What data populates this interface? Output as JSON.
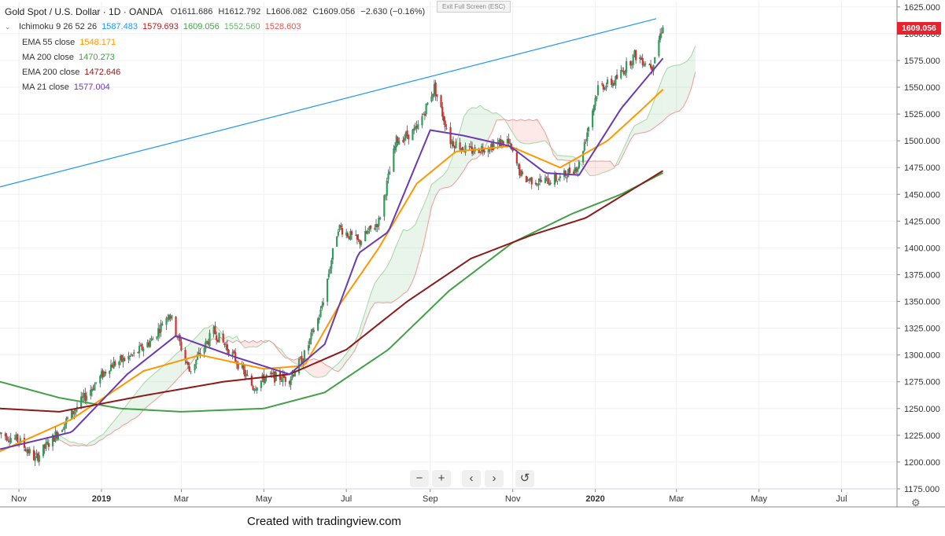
{
  "header": {
    "symbol": "Gold Spot / U.S. Dollar · 1D · OANDA",
    "open": "O1611.686",
    "high": "H1612.792",
    "low": "L1606.082",
    "close": "C1609.056",
    "change": "−2.630 (−0.16%)"
  },
  "toolbar": {
    "exit_fullscreen": "Exit Full Screen (ESC)"
  },
  "indicators": {
    "ichimoku": {
      "label": "Ichimoku 9 26 52 26",
      "values": [
        "1587.483",
        "1579.693",
        "1609.056",
        "1552.560",
        "1528.603"
      ],
      "colors": [
        "#2196f3",
        "#b71c1c",
        "#43a047",
        "#66bb6a",
        "#ef5350"
      ]
    },
    "ema55": {
      "label": "EMA 55 close",
      "value": "1548.171",
      "color": "#ff9800"
    },
    "ma200": {
      "label": "MA 200 close",
      "value": "1470.273",
      "color": "#43a047"
    },
    "ema200": {
      "label": "EMA 200 close",
      "value": "1472.646",
      "color": "#8b1a1a"
    },
    "ma21": {
      "label": "MA 21 close",
      "value": "1577.004",
      "color": "#6a3ab0"
    }
  },
  "price_badge": "1609.056",
  "nav": {
    "zoom_out": "−",
    "zoom_in": "+",
    "back": "‹",
    "forward": "›",
    "reset": "↺"
  },
  "credit": "Created with tradingview.com",
  "settings_icon": "gear-icon",
  "chart_data": {
    "type": "candlestick",
    "title": "Gold Spot / U.S. Dollar · 1D · OANDA",
    "yaxis_ticks": [
      1175,
      1200,
      1225,
      1250,
      1275,
      1300,
      1325,
      1350,
      1375,
      1400,
      1425,
      1450,
      1475,
      1500,
      1525,
      1550,
      1575,
      1600,
      1625
    ],
    "ylim": [
      1175,
      1630
    ],
    "xaxis_labels": [
      {
        "label": "Nov",
        "date": "2018-11-01"
      },
      {
        "label": "2019",
        "date": "2019-01-01"
      },
      {
        "label": "Mar",
        "date": "2019-03-01"
      },
      {
        "label": "May",
        "date": "2019-05-01"
      },
      {
        "label": "Jul",
        "date": "2019-07-01"
      },
      {
        "label": "Sep",
        "date": "2019-09-01"
      },
      {
        "label": "Nov",
        "date": "2019-11-01"
      },
      {
        "label": "2020",
        "date": "2020-01-01"
      },
      {
        "label": "Mar",
        "date": "2020-03-01"
      },
      {
        "label": "May",
        "date": "2020-05-01"
      },
      {
        "label": "Jul",
        "date": "2020-07-01"
      }
    ],
    "xlim": [
      "2018-10-18",
      "2020-08-11"
    ],
    "close_series": [
      [
        "2018-10-18",
        1227
      ],
      [
        "2018-11-01",
        1220
      ],
      [
        "2018-11-13",
        1203
      ],
      [
        "2018-11-26",
        1222
      ],
      [
        "2018-12-10",
        1245
      ],
      [
        "2018-12-24",
        1268
      ],
      [
        "2019-01-07",
        1290
      ],
      [
        "2019-01-25",
        1300
      ],
      [
        "2019-02-08",
        1315
      ],
      [
        "2019-02-20",
        1340
      ],
      [
        "2019-03-07",
        1285
      ],
      [
        "2019-03-25",
        1322
      ],
      [
        "2019-04-08",
        1300
      ],
      [
        "2019-04-23",
        1270
      ],
      [
        "2019-05-03",
        1280
      ],
      [
        "2019-05-20",
        1278
      ],
      [
        "2019-05-31",
        1300
      ],
      [
        "2019-06-12",
        1340
      ],
      [
        "2019-06-25",
        1420
      ],
      [
        "2019-07-10",
        1405
      ],
      [
        "2019-07-25",
        1425
      ],
      [
        "2019-08-07",
        1500
      ],
      [
        "2019-08-22",
        1510
      ],
      [
        "2019-09-04",
        1550
      ],
      [
        "2019-09-16",
        1500
      ],
      [
        "2019-09-30",
        1490
      ],
      [
        "2019-10-14",
        1495
      ],
      [
        "2019-10-28",
        1500
      ],
      [
        "2019-11-08",
        1465
      ],
      [
        "2019-11-22",
        1462
      ],
      [
        "2019-12-06",
        1465
      ],
      [
        "2019-12-20",
        1478
      ],
      [
        "2020-01-03",
        1550
      ],
      [
        "2020-01-15",
        1555
      ],
      [
        "2020-01-30",
        1580
      ],
      [
        "2020-02-12",
        1570
      ],
      [
        "2020-02-20",
        1609
      ]
    ],
    "series": [
      {
        "name": "EMA 55 close",
        "color": "#ff9800",
        "points": [
          [
            "2018-10-18",
            1210
          ],
          [
            "2018-12-10",
            1240
          ],
          [
            "2019-02-01",
            1285
          ],
          [
            "2019-03-15",
            1300
          ],
          [
            "2019-05-01",
            1287
          ],
          [
            "2019-05-31",
            1290
          ],
          [
            "2019-06-25",
            1345
          ],
          [
            "2019-07-25",
            1400
          ],
          [
            "2019-08-22",
            1460
          ],
          [
            "2019-09-20",
            1490
          ],
          [
            "2019-10-30",
            1495
          ],
          [
            "2019-12-06",
            1475
          ],
          [
            "2020-01-10",
            1500
          ],
          [
            "2020-02-05",
            1530
          ],
          [
            "2020-02-20",
            1548
          ]
        ]
      },
      {
        "name": "MA 200 close",
        "color": "#43a047",
        "points": [
          [
            "2018-10-18",
            1275
          ],
          [
            "2018-12-01",
            1260
          ],
          [
            "2019-01-15",
            1250
          ],
          [
            "2019-03-01",
            1247
          ],
          [
            "2019-05-01",
            1250
          ],
          [
            "2019-06-15",
            1265
          ],
          [
            "2019-08-01",
            1305
          ],
          [
            "2019-09-15",
            1360
          ],
          [
            "2019-11-01",
            1405
          ],
          [
            "2019-12-15",
            1432
          ],
          [
            "2020-01-20",
            1450
          ],
          [
            "2020-02-20",
            1470
          ]
        ]
      },
      {
        "name": "EMA 200 close",
        "color": "#8b1a1a",
        "points": [
          [
            "2018-10-18",
            1250
          ],
          [
            "2018-12-01",
            1247
          ],
          [
            "2019-02-01",
            1262
          ],
          [
            "2019-04-01",
            1275
          ],
          [
            "2019-05-20",
            1282
          ],
          [
            "2019-07-01",
            1305
          ],
          [
            "2019-08-15",
            1350
          ],
          [
            "2019-10-01",
            1390
          ],
          [
            "2019-11-15",
            1412
          ],
          [
            "2019-12-25",
            1428
          ],
          [
            "2020-02-20",
            1472
          ]
        ]
      },
      {
        "name": "MA 21 close",
        "color": "#6a3ab0",
        "points": [
          [
            "2018-10-18",
            1212
          ],
          [
            "2018-12-10",
            1228
          ],
          [
            "2019-01-20",
            1282
          ],
          [
            "2019-02-25",
            1318
          ],
          [
            "2019-04-10",
            1298
          ],
          [
            "2019-05-20",
            1282
          ],
          [
            "2019-06-15",
            1310
          ],
          [
            "2019-07-10",
            1395
          ],
          [
            "2019-08-01",
            1415
          ],
          [
            "2019-09-01",
            1510
          ],
          [
            "2019-09-25",
            1505
          ],
          [
            "2019-10-30",
            1495
          ],
          [
            "2019-11-25",
            1470
          ],
          [
            "2019-12-20",
            1468
          ],
          [
            "2020-01-20",
            1530
          ],
          [
            "2020-02-20",
            1577
          ]
        ]
      }
    ],
    "trendline": {
      "color": "#2196f3",
      "from": [
        "2018-10-18",
        1457
      ],
      "to": [
        "2020-02-15",
        1614
      ]
    }
  }
}
